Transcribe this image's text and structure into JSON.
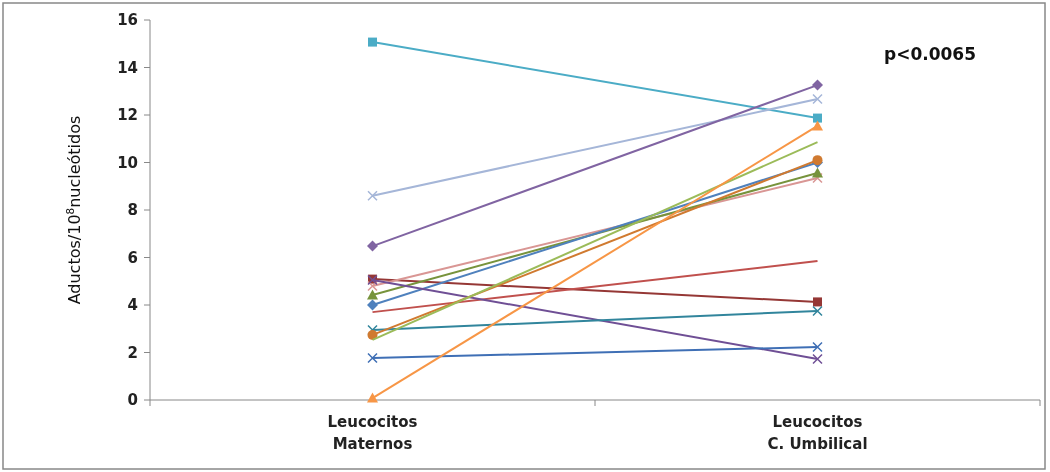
{
  "chart_data": {
    "type": "line",
    "ylabel": "Aductos/10$^{8}$nucleótidos",
    "categories": [
      "Leucocitos\nMaternos",
      "Leucocitos\nC. Umbilical"
    ],
    "ylim": [
      0,
      16
    ],
    "yticks": [
      0,
      2,
      4,
      6,
      8,
      10,
      12,
      14,
      16
    ],
    "grid": false,
    "annotations": [
      "p<0.0065"
    ],
    "series": [
      {
        "color": "#4bacc6",
        "marker": "square",
        "values": [
          15.07,
          11.87
        ]
      },
      {
        "color": "#a5b6d8",
        "marker": "cross",
        "values": [
          8.6,
          12.67
        ]
      },
      {
        "color": "#8064a2",
        "marker": "diamond",
        "values": [
          6.48,
          13.26
        ]
      },
      {
        "color": "#953735",
        "marker": "square",
        "values": [
          5.09,
          4.13
        ]
      },
      {
        "color": "#d99694",
        "marker": "cross",
        "values": [
          4.8,
          9.35
        ]
      },
      {
        "color": "#77933c",
        "marker": "triangle",
        "values": [
          4.42,
          9.56
        ]
      },
      {
        "color": "#4f81bd",
        "marker": "diamond",
        "values": [
          4.0,
          10.0
        ]
      },
      {
        "color": "#c0504d",
        "marker": "none",
        "values": [
          3.7,
          5.85
        ]
      },
      {
        "color": "#6f4f95",
        "marker": "cross",
        "values": [
          5.05,
          1.73
        ]
      },
      {
        "color": "#31859c",
        "marker": "cross",
        "values": [
          2.95,
          3.75
        ]
      },
      {
        "color": "#d07a30",
        "marker": "circle",
        "values": [
          2.74,
          10.1
        ]
      },
      {
        "color": "#9bbb59",
        "marker": "none",
        "values": [
          2.53,
          10.86
        ]
      },
      {
        "color": "#3f6fb5",
        "marker": "cross",
        "values": [
          1.77,
          2.23
        ]
      },
      {
        "color": "#f79646",
        "marker": "triangle",
        "values": [
          0.08,
          11.54
        ]
      }
    ]
  }
}
